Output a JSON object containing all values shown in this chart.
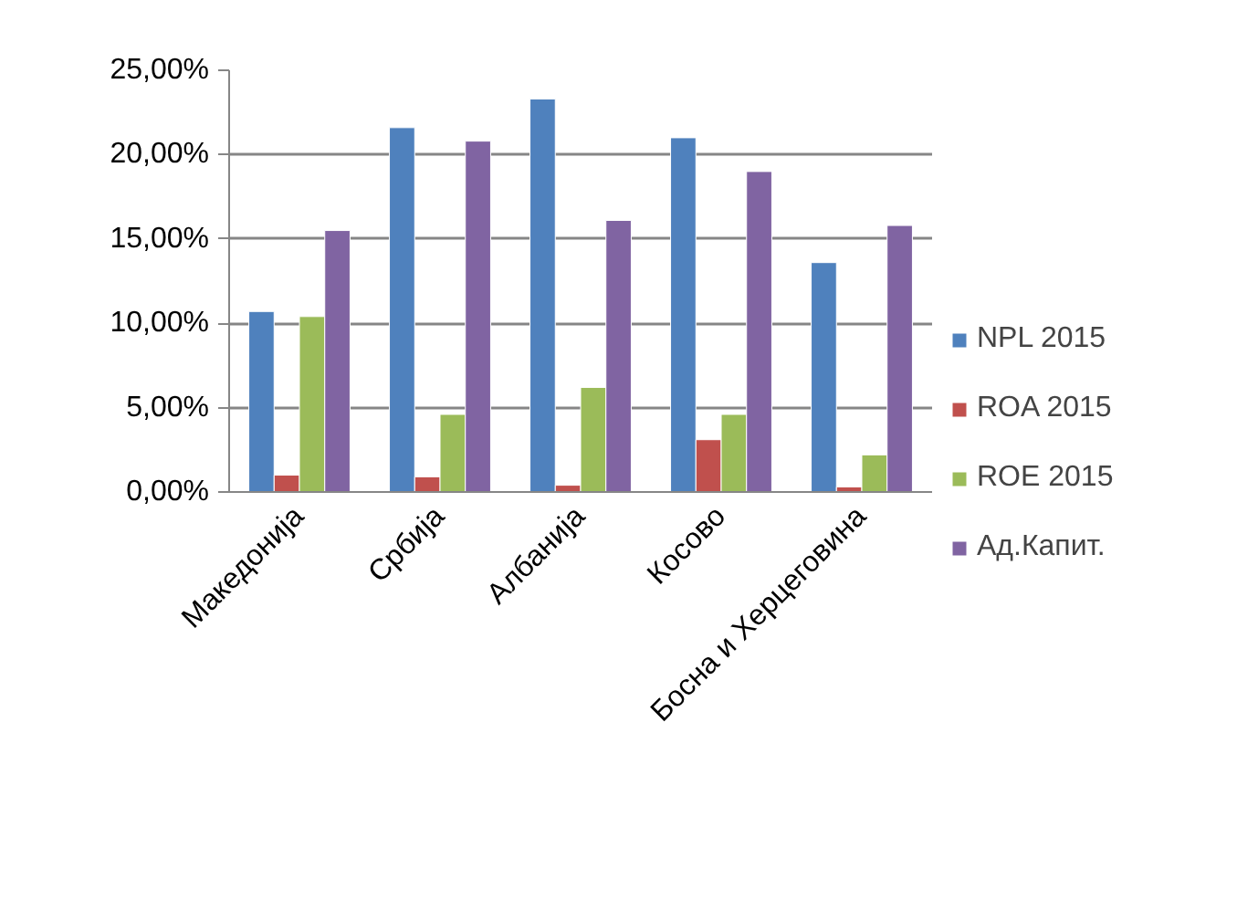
{
  "chart_data": {
    "type": "bar",
    "categories": [
      "Македонија",
      "Србија",
      "Албанија",
      "Косово",
      "Босна и Херцеговина"
    ],
    "series": [
      {
        "name": "NPL 2015",
        "color": "#4f81bd",
        "values": [
          10.7,
          21.6,
          23.3,
          21.0,
          13.6
        ]
      },
      {
        "name": "ROA 2015",
        "color": "#c0504d",
        "values": [
          1.0,
          0.9,
          0.4,
          3.1,
          0.3
        ]
      },
      {
        "name": "ROE 2015",
        "color": "#9bbb59",
        "values": [
          10.4,
          4.6,
          6.2,
          4.6,
          2.2
        ]
      },
      {
        "name": "Ад.Капит.",
        "color": "#8064a2",
        "values": [
          15.5,
          20.8,
          16.1,
          19.0,
          15.8
        ]
      }
    ],
    "ylim": [
      0,
      25
    ],
    "yticks": [
      {
        "value": 0,
        "label": "0,00%"
      },
      {
        "value": 5,
        "label": "5,00%"
      },
      {
        "value": 10,
        "label": "10,00%"
      },
      {
        "value": 15,
        "label": "15,00%"
      },
      {
        "value": 20,
        "label": "20,00%"
      },
      {
        "value": 25,
        "label": "25,00%"
      }
    ],
    "grid": "y",
    "legend": "right"
  }
}
